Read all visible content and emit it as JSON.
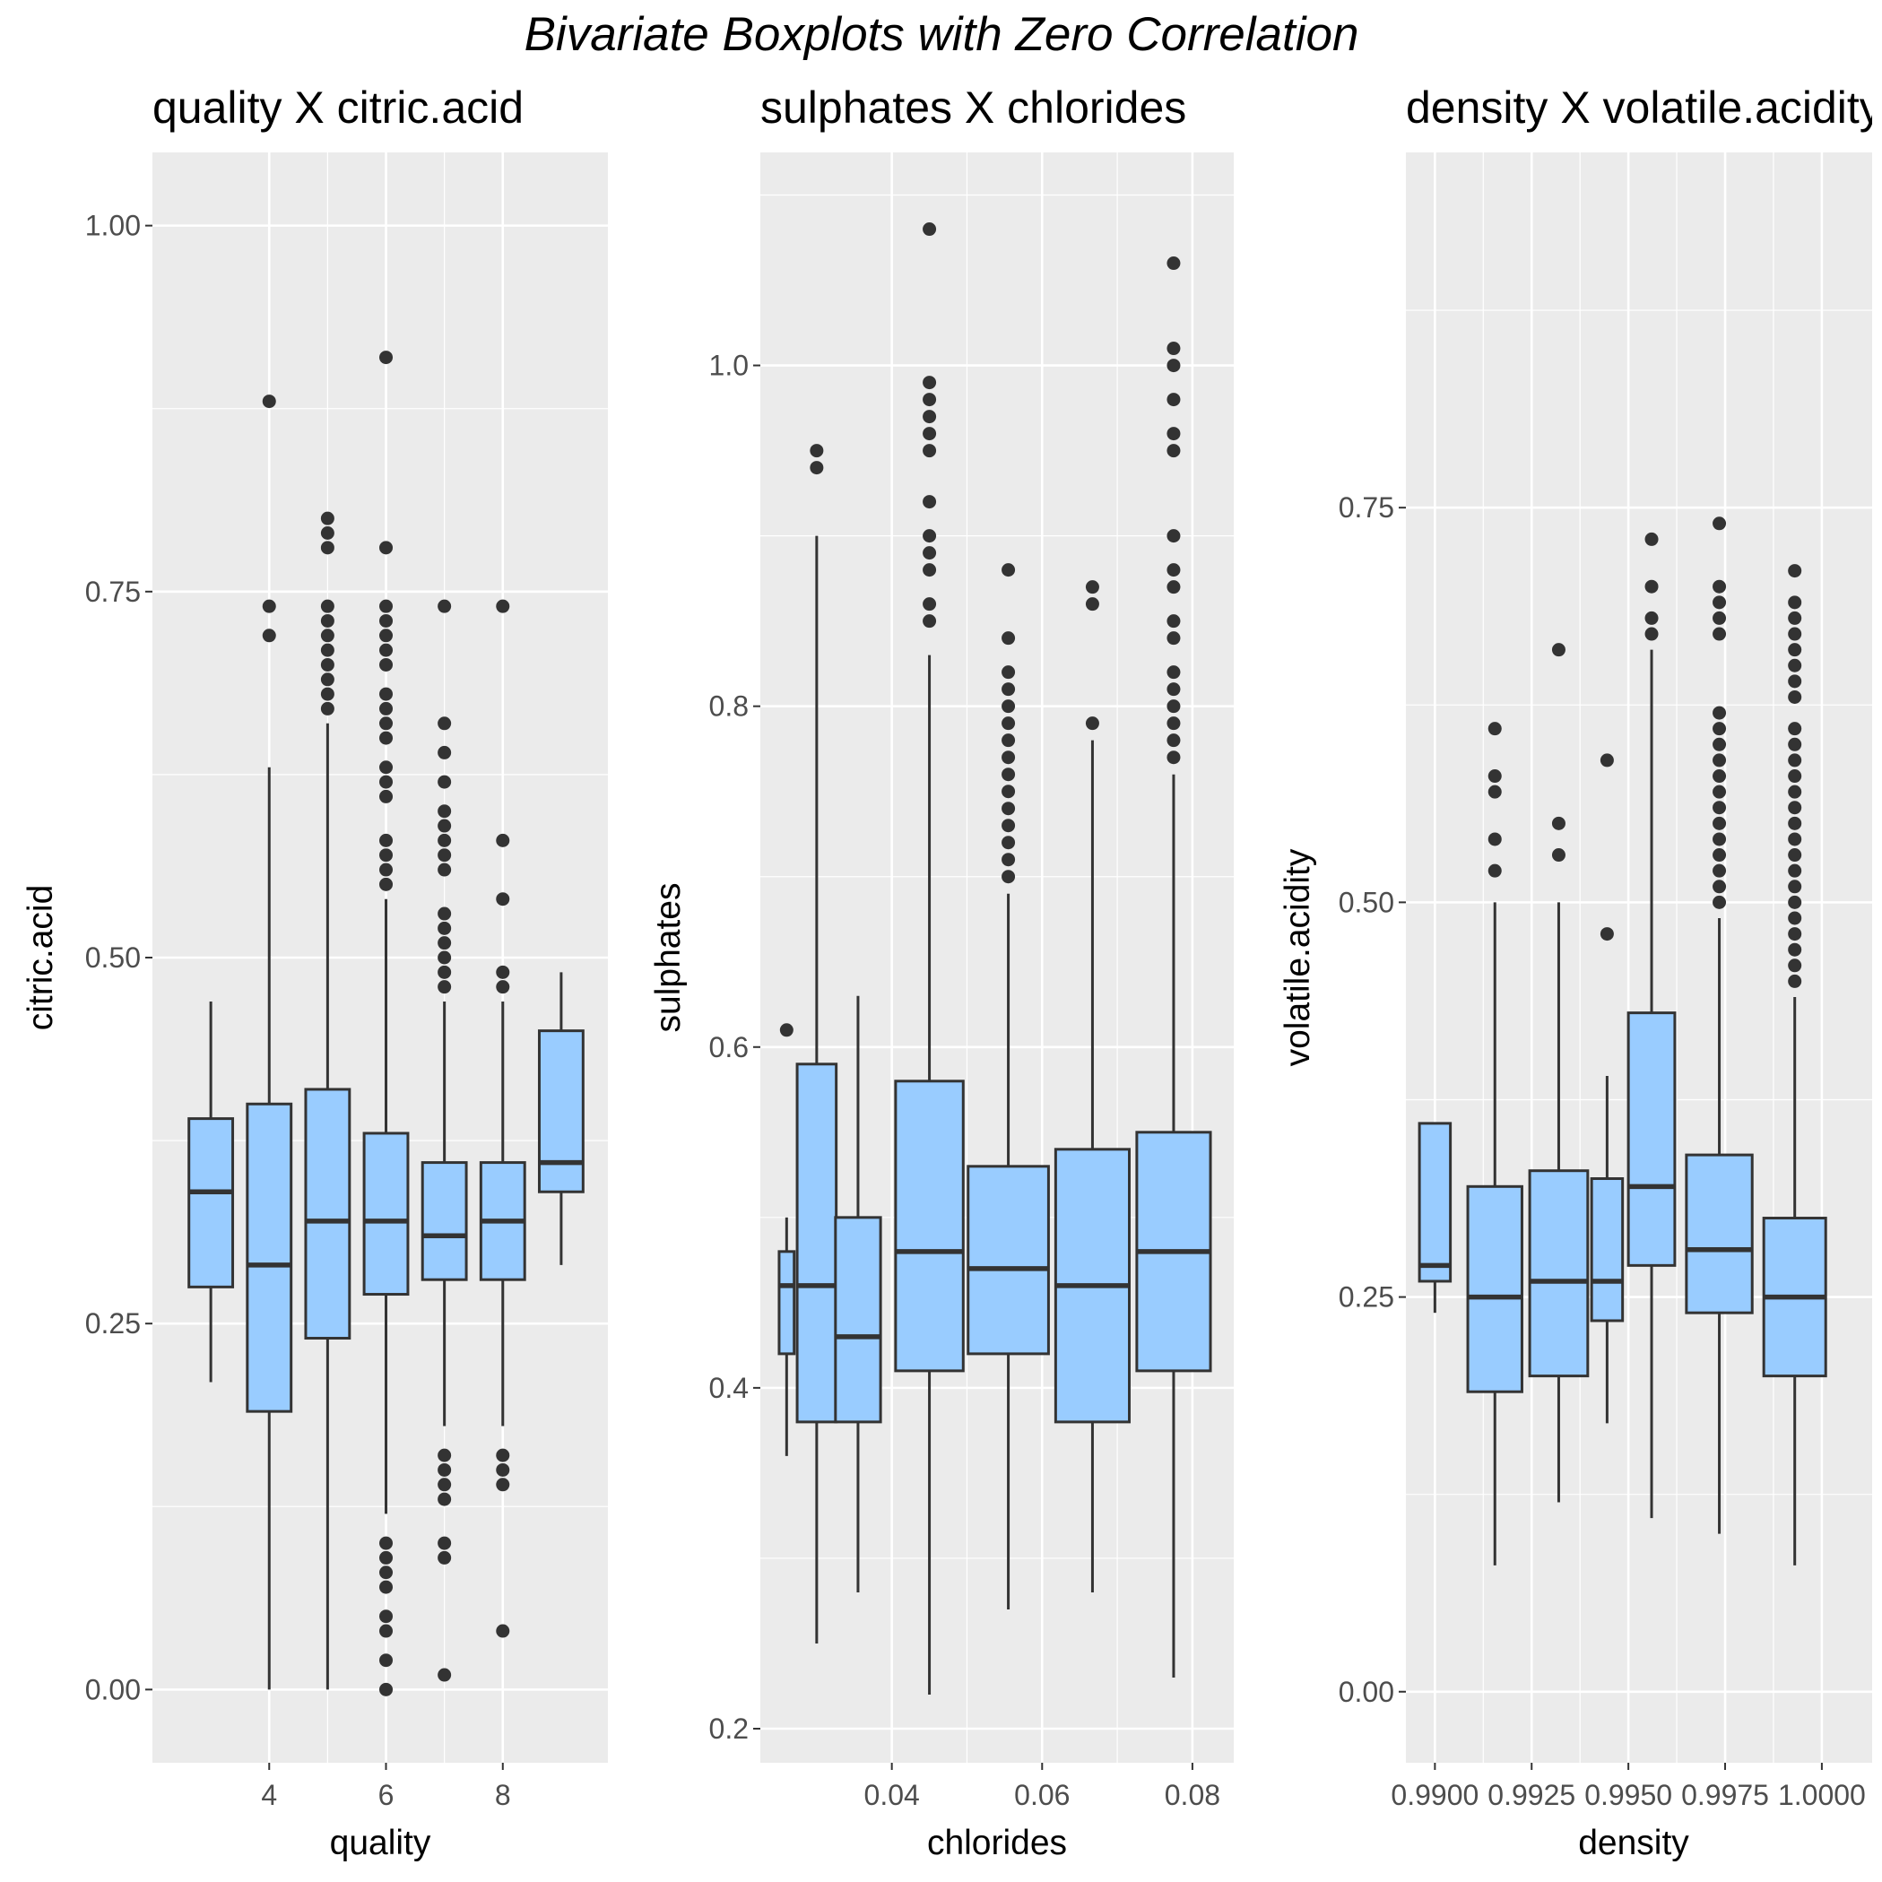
{
  "figure_title": "Bivariate Boxplots with Zero Correlation",
  "colors": {
    "panel_bg": "#ebebeb",
    "grid": "#ffffff",
    "box_fill": "#99ccff",
    "stroke": "#333333",
    "outlier": "#333333"
  },
  "chart_data": [
    {
      "type": "boxplot",
      "title": "quality X citric.acid",
      "xlabel": "quality",
      "ylabel": "citric.acid",
      "xlim": [
        2.0,
        9.8
      ],
      "ylim": [
        -0.05,
        1.05
      ],
      "x_ticks": [
        4,
        6,
        8
      ],
      "x_tick_labels": [
        "4",
        "6",
        "8"
      ],
      "y_ticks": [
        0,
        0.25,
        0.5,
        0.75,
        1.0
      ],
      "y_tick_labels": [
        "0.00",
        "0.25",
        "0.50",
        "0.75",
        "1.00"
      ],
      "grid": true,
      "boxes": [
        {
          "x": 3,
          "width": 0.75,
          "q1": 0.275,
          "median": 0.34,
          "q3": 0.39,
          "whisker_low": 0.21,
          "whisker_high": 0.47,
          "outliers": []
        },
        {
          "x": 4,
          "width": 0.75,
          "q1": 0.19,
          "median": 0.29,
          "q3": 0.4,
          "whisker_low": 0.0,
          "whisker_high": 0.63,
          "outliers": [
            0.72,
            0.74,
            0.88
          ]
        },
        {
          "x": 5,
          "width": 0.75,
          "q1": 0.24,
          "median": 0.32,
          "q3": 0.41,
          "whisker_low": 0.0,
          "whisker_high": 0.66,
          "outliers": [
            0.67,
            0.68,
            0.69,
            0.7,
            0.71,
            0.72,
            0.73,
            0.74,
            0.78,
            0.79,
            0.8
          ]
        },
        {
          "x": 6,
          "width": 0.75,
          "q1": 0.27,
          "median": 0.32,
          "q3": 0.38,
          "whisker_low": 0.12,
          "whisker_high": 0.54,
          "outliers": [
            0.0,
            0.02,
            0.04,
            0.05,
            0.07,
            0.08,
            0.09,
            0.1,
            0.55,
            0.56,
            0.57,
            0.58,
            0.61,
            0.62,
            0.63,
            0.65,
            0.66,
            0.67,
            0.68,
            0.7,
            0.71,
            0.72,
            0.73,
            0.74,
            0.78,
            0.91
          ]
        },
        {
          "x": 7,
          "width": 0.75,
          "q1": 0.28,
          "median": 0.31,
          "q3": 0.36,
          "whisker_low": 0.18,
          "whisker_high": 0.47,
          "outliers": [
            0.01,
            0.09,
            0.1,
            0.13,
            0.14,
            0.15,
            0.16,
            0.48,
            0.49,
            0.5,
            0.51,
            0.52,
            0.53,
            0.56,
            0.57,
            0.58,
            0.59,
            0.6,
            0.62,
            0.64,
            0.66,
            0.74
          ]
        },
        {
          "x": 8,
          "width": 0.75,
          "q1": 0.28,
          "median": 0.32,
          "q3": 0.36,
          "whisker_low": 0.18,
          "whisker_high": 0.47,
          "outliers": [
            0.04,
            0.14,
            0.15,
            0.16,
            0.48,
            0.49,
            0.54,
            0.58,
            0.74
          ]
        },
        {
          "x": 9,
          "width": 0.75,
          "q1": 0.34,
          "median": 0.36,
          "q3": 0.45,
          "whisker_low": 0.29,
          "whisker_high": 0.49,
          "outliers": []
        }
      ]
    },
    {
      "type": "boxplot",
      "title": "sulphates X chlorides",
      "xlabel": "chlorides",
      "ylabel": "sulphates",
      "xlim": [
        0.0225,
        0.0855
      ],
      "ylim": [
        0.18,
        1.125
      ],
      "x_ticks": [
        0.04,
        0.06,
        0.08
      ],
      "x_tick_labels": [
        "0.04",
        "0.06",
        "0.08"
      ],
      "y_ticks": [
        0.2,
        0.4,
        0.6,
        0.8,
        1.0
      ],
      "y_tick_labels": [
        "0.2",
        "0.4",
        "0.6",
        "0.8",
        "1.0"
      ],
      "grid": true,
      "boxes": [
        {
          "x": 0.026,
          "width": 0.002,
          "q1": 0.42,
          "median": 0.46,
          "q3": 0.48,
          "whisker_low": 0.36,
          "whisker_high": 0.5,
          "outliers": [
            0.61
          ]
        },
        {
          "x": 0.03,
          "width": 0.0052,
          "q1": 0.38,
          "median": 0.46,
          "q3": 0.59,
          "whisker_low": 0.25,
          "whisker_high": 0.9,
          "outliers": [
            0.94,
            0.95
          ]
        },
        {
          "x": 0.0355,
          "width": 0.006,
          "q1": 0.38,
          "median": 0.43,
          "q3": 0.5,
          "whisker_low": 0.28,
          "whisker_high": 0.63,
          "outliers": []
        },
        {
          "x": 0.045,
          "width": 0.009,
          "q1": 0.41,
          "median": 0.48,
          "q3": 0.58,
          "whisker_low": 0.22,
          "whisker_high": 0.83,
          "outliers": [
            0.85,
            0.86,
            0.88,
            0.89,
            0.9,
            0.92,
            0.95,
            0.96,
            0.97,
            0.98,
            0.99,
            1.08
          ]
        },
        {
          "x": 0.0555,
          "width": 0.0107,
          "q1": 0.42,
          "median": 0.47,
          "q3": 0.53,
          "whisker_low": 0.27,
          "whisker_high": 0.69,
          "outliers": [
            0.7,
            0.71,
            0.72,
            0.73,
            0.74,
            0.75,
            0.76,
            0.77,
            0.78,
            0.79,
            0.8,
            0.81,
            0.82,
            0.84,
            0.88
          ]
        },
        {
          "x": 0.0667,
          "width": 0.0098,
          "q1": 0.38,
          "median": 0.46,
          "q3": 0.54,
          "whisker_low": 0.28,
          "whisker_high": 0.78,
          "outliers": [
            0.79,
            0.86,
            0.87
          ]
        },
        {
          "x": 0.0775,
          "width": 0.0098,
          "q1": 0.41,
          "median": 0.48,
          "q3": 0.55,
          "whisker_low": 0.23,
          "whisker_high": 0.76,
          "outliers": [
            0.77,
            0.78,
            0.79,
            0.8,
            0.81,
            0.82,
            0.84,
            0.85,
            0.87,
            0.88,
            0.9,
            0.95,
            0.96,
            0.98,
            1.0,
            1.01,
            1.06
          ]
        }
      ]
    },
    {
      "type": "boxplot",
      "title": "density X volatile.acidity",
      "xlabel": "density",
      "ylabel": "volatile.acidity",
      "xlim": [
        0.98925,
        1.0013
      ],
      "ylim": [
        -0.045,
        0.975
      ],
      "x_ticks": [
        0.99,
        0.9925,
        0.995,
        0.9975,
        1.0
      ],
      "x_tick_labels": [
        "0.9900",
        "0.9925",
        "0.9950",
        "0.9975",
        "1.0000"
      ],
      "y_ticks": [
        0,
        0.25,
        0.5,
        0.75
      ],
      "y_tick_labels": [
        "0.00",
        "0.25",
        "0.50",
        "0.75"
      ],
      "grid": true,
      "boxes": [
        {
          "x": 0.99,
          "width": 0.0008,
          "q1": 0.26,
          "median": 0.27,
          "q3": 0.36,
          "whisker_low": 0.24,
          "whisker_high": 0.36,
          "outliers": []
        },
        {
          "x": 0.99155,
          "width": 0.0014,
          "q1": 0.19,
          "median": 0.25,
          "q3": 0.32,
          "whisker_low": 0.08,
          "whisker_high": 0.5,
          "outliers": [
            0.52,
            0.54,
            0.57,
            0.58,
            0.61
          ]
        },
        {
          "x": 0.9932,
          "width": 0.0015,
          "q1": 0.2,
          "median": 0.26,
          "q3": 0.33,
          "whisker_low": 0.12,
          "whisker_high": 0.5,
          "outliers": [
            0.53,
            0.55,
            0.66
          ]
        },
        {
          "x": 0.99445,
          "width": 0.0008,
          "q1": 0.235,
          "median": 0.26,
          "q3": 0.325,
          "whisker_low": 0.17,
          "whisker_high": 0.39,
          "outliers": [
            0.48,
            0.59
          ]
        },
        {
          "x": 0.9956,
          "width": 0.0012,
          "q1": 0.27,
          "median": 0.32,
          "q3": 0.43,
          "whisker_low": 0.11,
          "whisker_high": 0.66,
          "outliers": [
            0.67,
            0.68,
            0.7,
            0.73
          ]
        },
        {
          "x": 0.99735,
          "width": 0.0017,
          "q1": 0.24,
          "median": 0.28,
          "q3": 0.34,
          "whisker_low": 0.1,
          "whisker_high": 0.49,
          "outliers": [
            0.5,
            0.51,
            0.52,
            0.53,
            0.54,
            0.55,
            0.56,
            0.57,
            0.58,
            0.59,
            0.6,
            0.61,
            0.62,
            0.67,
            0.68,
            0.69,
            0.7,
            0.74
          ]
        },
        {
          "x": 0.9993,
          "width": 0.0016,
          "q1": 0.2,
          "median": 0.25,
          "q3": 0.3,
          "whisker_low": 0.08,
          "whisker_high": 0.44,
          "outliers": [
            0.45,
            0.46,
            0.47,
            0.48,
            0.49,
            0.5,
            0.51,
            0.52,
            0.53,
            0.54,
            0.55,
            0.56,
            0.57,
            0.58,
            0.59,
            0.6,
            0.61,
            0.63,
            0.64,
            0.65,
            0.66,
            0.67,
            0.68,
            0.69,
            0.71
          ]
        }
      ]
    }
  ]
}
